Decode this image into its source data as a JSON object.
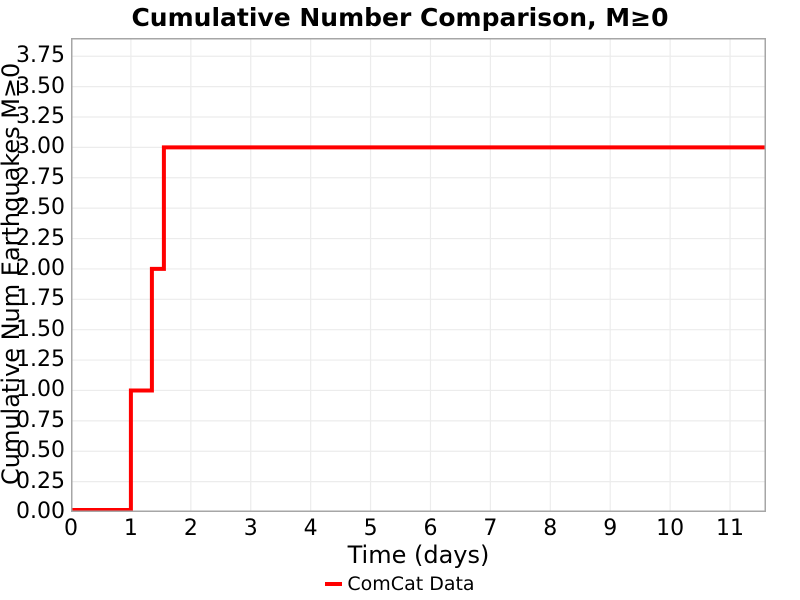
{
  "figure": {
    "title": "Cumulative Number Comparison, M≥0"
  },
  "chart_data": {
    "type": "line",
    "style": "step-post",
    "title": "Cumulative Number Comparison, M≥0",
    "xlabel": "Time (days)",
    "ylabel": "Cumulative Num Earthquakes M≥0",
    "xlim": [
      0,
      11.6
    ],
    "ylim": [
      0,
      3.9
    ],
    "xticks": [
      0,
      1,
      2,
      3,
      4,
      5,
      6,
      7,
      8,
      9,
      10,
      11
    ],
    "xtick_labels": [
      "0",
      "1",
      "2",
      "3",
      "4",
      "5",
      "6",
      "7",
      "8",
      "9",
      "10",
      "11"
    ],
    "yticks": [
      0,
      0.25,
      0.5,
      0.75,
      1,
      1.25,
      1.5,
      1.75,
      2,
      2.25,
      2.5,
      2.75,
      3,
      3.25,
      3.5,
      3.75
    ],
    "ytick_labels": [
      "0.00",
      "0.25",
      "0.50",
      "0.75",
      "1.00",
      "1.25",
      "1.50",
      "1.75",
      "2.00",
      "2.25",
      "2.50",
      "2.75",
      "3.00",
      "3.25",
      "3.50",
      "3.75"
    ],
    "grid": true,
    "series": [
      {
        "name": "ComCat Data",
        "color": "#ff0000",
        "line_width": 4,
        "points": [
          [
            0,
            0
          ],
          [
            1.0,
            0
          ],
          [
            1.0,
            1
          ],
          [
            1.35,
            1
          ],
          [
            1.35,
            2
          ],
          [
            1.55,
            2
          ],
          [
            1.55,
            3
          ],
          [
            11.6,
            3
          ]
        ]
      }
    ],
    "legend": {
      "position": "bottom-center",
      "entries": [
        {
          "label": "ComCat Data",
          "color": "#ff0000"
        }
      ]
    }
  },
  "colors": {
    "background": "#ffffff",
    "grid": "#ececec",
    "frame": "#a6a6a6",
    "text": "#000000",
    "series_red": "#ff0000"
  }
}
